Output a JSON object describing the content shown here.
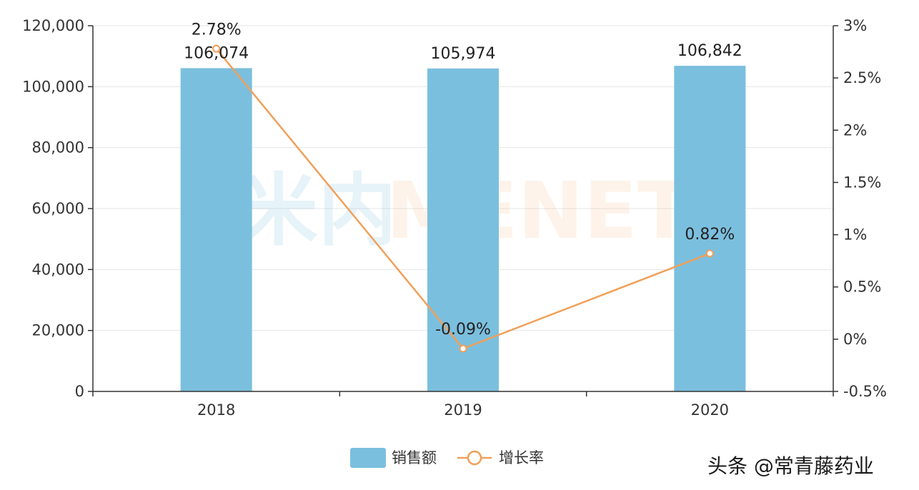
{
  "chart_data": {
    "type": "bar",
    "categories": [
      "2018",
      "2019",
      "2020"
    ],
    "series": [
      {
        "name": "销售额",
        "type": "bar",
        "axis": "left",
        "values": [
          106074,
          105974,
          106842
        ],
        "labels": [
          "106,074",
          "105,974",
          "106,842"
        ],
        "color": "#7bbfde"
      },
      {
        "name": "增长率",
        "type": "line",
        "axis": "right",
        "values": [
          2.78,
          -0.09,
          0.82
        ],
        "labels": [
          "2.78%",
          "-0.09%",
          "0.82%"
        ],
        "color": "#f0a05a"
      }
    ],
    "y_left": {
      "ylim": [
        0,
        120000
      ],
      "ticks": [
        0,
        20000,
        40000,
        60000,
        80000,
        100000,
        120000
      ],
      "tick_labels": [
        "0",
        "20,000",
        "40,000",
        "60,000",
        "80,000",
        "100,000",
        "120,000"
      ]
    },
    "y_right": {
      "ylim": [
        -0.5,
        3
      ],
      "ticks": [
        -0.5,
        0,
        0.5,
        1,
        1.5,
        2,
        2.5,
        3
      ],
      "tick_labels": [
        "-0.5%",
        "0%",
        "0.5%",
        "1%",
        "1.5%",
        "2%",
        "2.5%",
        "3%"
      ]
    },
    "grid": true,
    "legend_position": "bottom-center"
  },
  "watermark": {
    "text_left": "米内",
    "text_right": "MENET",
    "color_left": "#7bbfde",
    "color_right": "#f0a05a"
  },
  "credit": "头条 @常青藤药业"
}
